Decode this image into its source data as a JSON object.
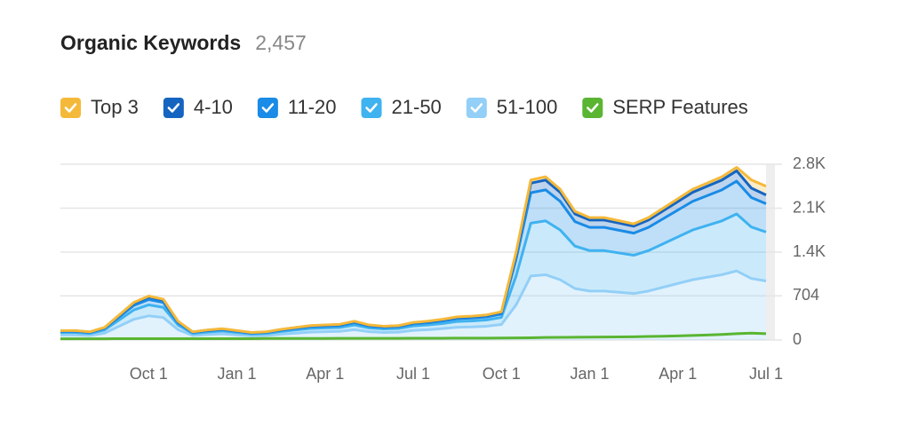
{
  "chart_data": {
    "type": "stacked-area",
    "title": "Organic Keywords",
    "keyword_count": "2,457",
    "categories": [
      null,
      null,
      null,
      null,
      null,
      null,
      "Oct 1",
      null,
      null,
      null,
      null,
      null,
      "Jan 1",
      null,
      null,
      null,
      null,
      null,
      "Apr 1",
      null,
      null,
      null,
      null,
      null,
      "Jul 1",
      null,
      null,
      null,
      null,
      null,
      "Oct 1",
      null,
      null,
      null,
      null,
      null,
      "Jan 1",
      null,
      null,
      null,
      null,
      null,
      "Apr 1",
      null,
      null,
      null,
      null,
      null,
      "Jul 1"
    ],
    "ylim": [
      0,
      2800
    ],
    "yticks": [
      0,
      704,
      {
        "value": 1400,
        "label": "1.4K"
      },
      {
        "value": 2100,
        "label": "2.1K"
      },
      {
        "value": 2800,
        "label": "2.8K"
      }
    ],
    "grid": true,
    "series": [
      {
        "name": "Top 3",
        "color": "#f5b93a",
        "stack": true,
        "values": [
          3,
          3,
          2,
          4,
          8,
          12,
          14,
          13,
          6,
          2,
          3,
          3,
          3,
          3,
          2,
          4,
          4,
          4,
          5,
          5,
          6,
          5,
          5,
          4,
          5,
          6,
          6,
          8,
          7,
          8,
          9,
          28,
          51,
          52,
          48,
          41,
          39,
          39,
          38,
          37,
          39,
          42,
          45,
          48,
          50,
          52,
          55,
          130,
          140
        ]
      },
      {
        "name": "4-10",
        "color": "#1565c0",
        "stack": true,
        "values": [
          9,
          9,
          8,
          12,
          24,
          36,
          42,
          39,
          18,
          8,
          10,
          11,
          9,
          7,
          8,
          10,
          12,
          14,
          14,
          15,
          18,
          14,
          13,
          14,
          17,
          18,
          20,
          22,
          23,
          24,
          27,
          84,
          153,
          156,
          144,
          123,
          117,
          117,
          114,
          111,
          117,
          126,
          135,
          144,
          150,
          156,
          165,
          150,
          140
        ]
      },
      {
        "name": "11-20",
        "color": "#1a8be6",
        "stack": true,
        "values": [
          18,
          18,
          16,
          24,
          48,
          72,
          84,
          78,
          36,
          16,
          19,
          22,
          18,
          14,
          16,
          20,
          24,
          28,
          29,
          30,
          36,
          29,
          26,
          28,
          34,
          36,
          40,
          44,
          46,
          48,
          54,
          266,
          484,
          494,
          456,
          390,
          370,
          370,
          361,
          352,
          370,
          399,
          428,
          456,
          475,
          494,
          522,
          470,
          450
        ]
      },
      {
        "name": "21-50",
        "color": "#3fb2f0",
        "stack": true,
        "values": [
          38,
          38,
          32,
          50,
          100,
          150,
          175,
          162,
          75,
          32,
          40,
          45,
          38,
          30,
          32,
          42,
          50,
          58,
          60,
          62,
          75,
          60,
          55,
          58,
          70,
          75,
          82,
          92,
          95,
          100,
          112,
          462,
          842,
          858,
          792,
          676,
          644,
          644,
          627,
          610,
          644,
          693,
          742,
          792,
          825,
          858,
          908,
          820,
          780
        ]
      },
      {
        "name": "51-100",
        "color": "#93cff7",
        "stack": true,
        "values": [
          82,
          82,
          72,
          110,
          220,
          330,
          385,
          358,
          165,
          72,
          88,
          99,
          82,
          66,
          72,
          94,
          110,
          126,
          132,
          138,
          165,
          132,
          121,
          126,
          154,
          165,
          182,
          204,
          209,
          220,
          248,
          560,
          1020,
          1040,
          960,
          820,
          780,
          780,
          760,
          740,
          780,
          840,
          900,
          960,
          1000,
          1040,
          1100,
          980,
          940
        ]
      },
      {
        "name": "SERP Features",
        "color": "#5ab532",
        "stack": false,
        "values": [
          20,
          20,
          20,
          20,
          22,
          22,
          22,
          22,
          22,
          22,
          22,
          22,
          22,
          22,
          24,
          24,
          24,
          24,
          24,
          26,
          26,
          26,
          26,
          26,
          28,
          28,
          28,
          30,
          30,
          30,
          32,
          34,
          36,
          40,
          42,
          44,
          46,
          48,
          50,
          52,
          56,
          60,
          66,
          72,
          80,
          88,
          100,
          110,
          100
        ]
      }
    ]
  }
}
